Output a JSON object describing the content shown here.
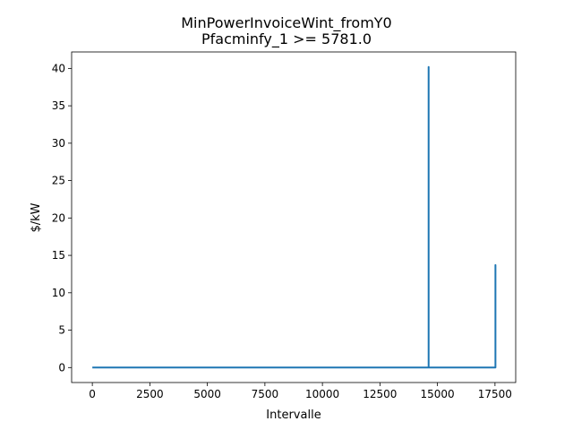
{
  "chart_data": {
    "type": "line",
    "title": "MinPowerInvoiceWint_fromY0",
    "subtitle": "Pfacminfy_1 >= 5781.0",
    "xlabel": "Intervalle",
    "ylabel": "$/kW",
    "xlim": [
      -900,
      18400
    ],
    "ylim": [
      -2.0,
      42.2
    ],
    "xticks": [
      0,
      2500,
      5000,
      7500,
      10000,
      12500,
      15000,
      17500
    ],
    "xtick_labels": [
      "0",
      "2500",
      "5000",
      "7500",
      "10000",
      "12500",
      "15000",
      "17500"
    ],
    "yticks": [
      0,
      5,
      10,
      15,
      20,
      25,
      30,
      35,
      40
    ],
    "ytick_labels": [
      "0",
      "5",
      "10",
      "15",
      "20",
      "25",
      "30",
      "35",
      "40"
    ],
    "grid": false,
    "legend": "none",
    "series": [
      {
        "color": "#1f77b4",
        "x": [
          0,
          14615,
          14615,
          14616,
          14616,
          17519,
          17519,
          17520,
          17520
        ],
        "y": [
          0,
          0,
          40.2,
          40.2,
          0,
          0,
          13.7,
          13.7,
          0
        ]
      }
    ]
  }
}
